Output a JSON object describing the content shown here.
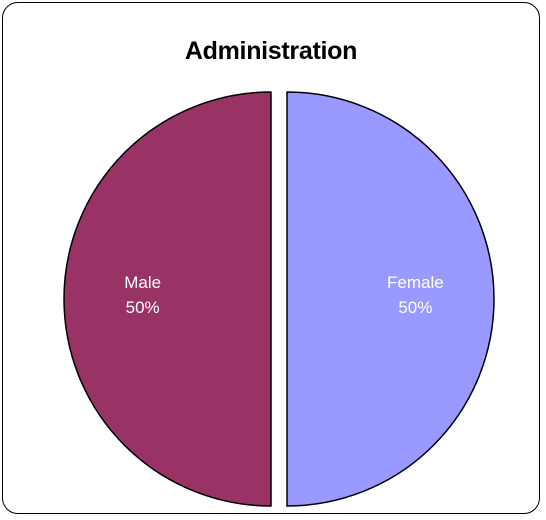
{
  "chart_data": {
    "type": "pie",
    "title": "Administration",
    "slices": [
      {
        "label": "Male",
        "value": 50,
        "percent_label": "50%",
        "color": "#993366"
      },
      {
        "label": "Female",
        "value": 50,
        "percent_label": "50%",
        "color": "#9999FF"
      }
    ],
    "exploded": true,
    "border_color": "#000000"
  }
}
